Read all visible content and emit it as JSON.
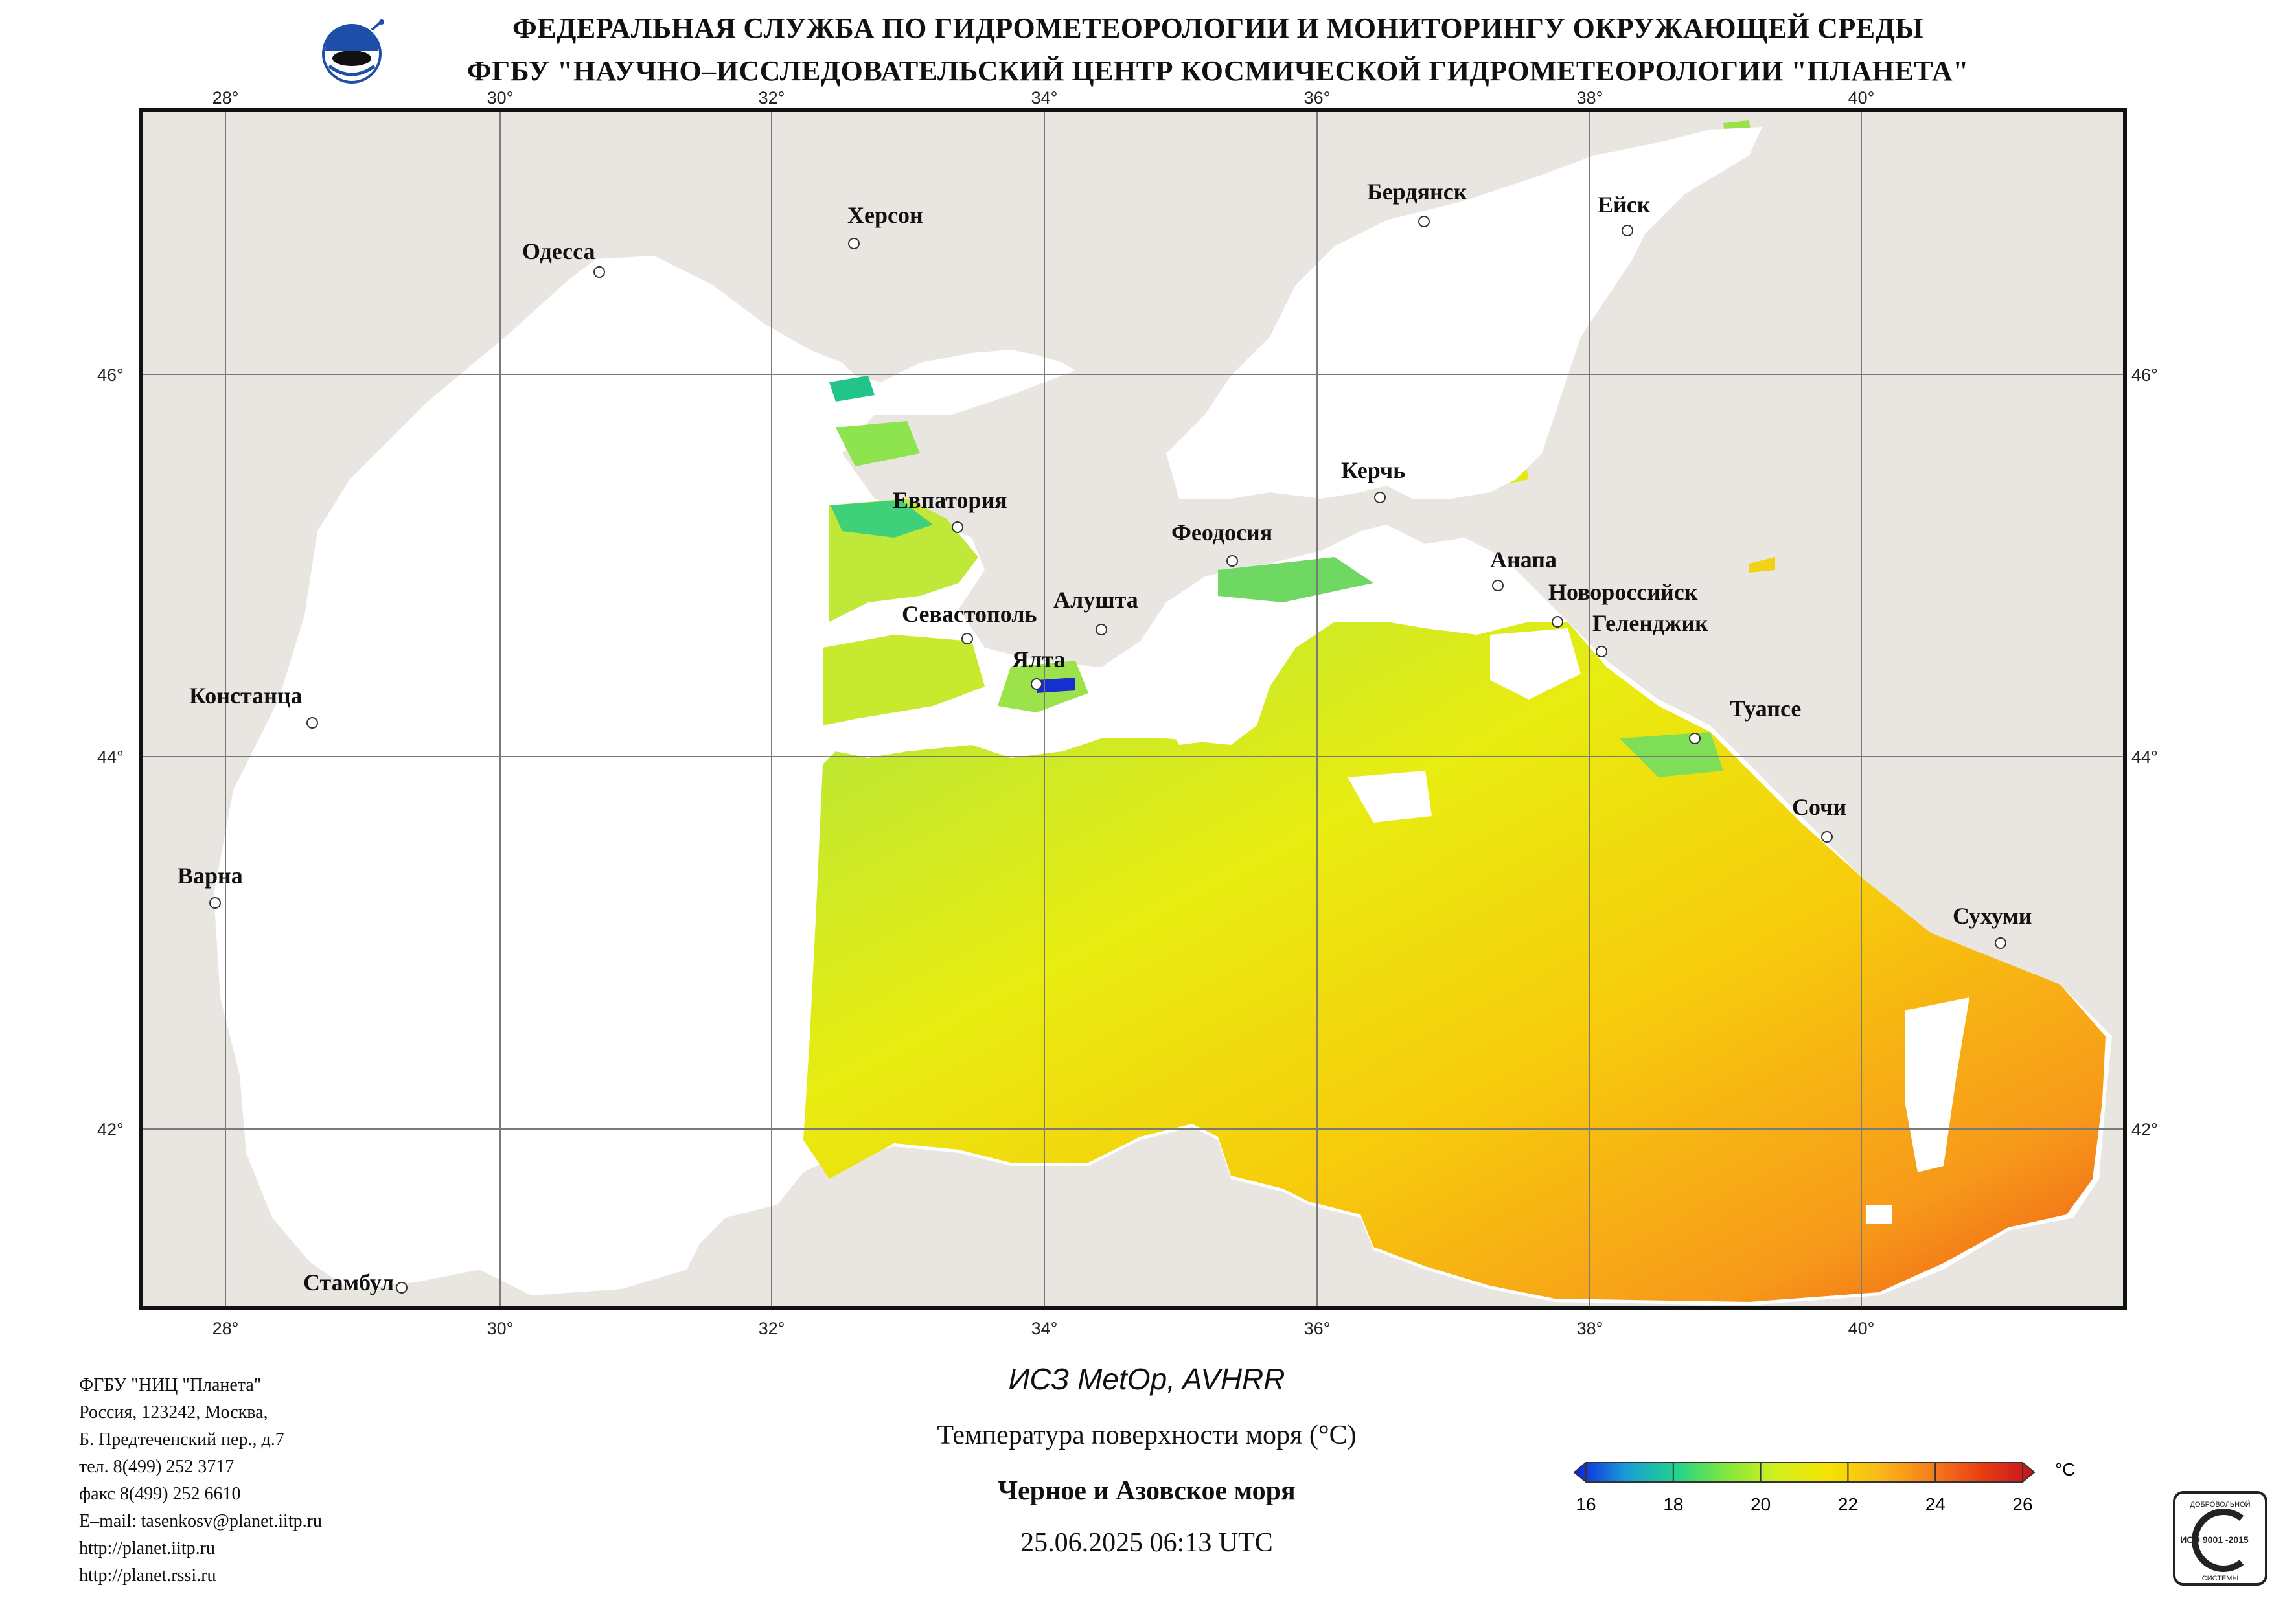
{
  "header": {
    "line1": "ФЕДЕРАЛЬНАЯ СЛУЖБА ПО ГИДРОМЕТЕОРОЛОГИИ И МОНИТОРИНГУ ОКРУЖАЮЩЕЙ СРЕДЫ",
    "line2": "ФГБУ \"НАУЧНО–ИССЛЕДОВАТЕЛЬСКИЙ ЦЕНТР КОСМИЧЕСКОЙ ГИДРОМЕТЕОРОЛОГИИ \"ПЛАНЕТА\""
  },
  "map": {
    "lon_ticks": [
      "28°",
      "30°",
      "32°",
      "34°",
      "36°",
      "38°",
      "40°"
    ],
    "lat_ticks": [
      "46°",
      "44°",
      "42°"
    ],
    "cities": [
      {
        "name": "Одесса"
      },
      {
        "name": "Херсон"
      },
      {
        "name": "Бердянск"
      },
      {
        "name": "Ейск"
      },
      {
        "name": "Евпатория"
      },
      {
        "name": "Керчь"
      },
      {
        "name": "Феодосия"
      },
      {
        "name": "Анапа"
      },
      {
        "name": "Алушта"
      },
      {
        "name": "Севастополь"
      },
      {
        "name": "Новороссийск"
      },
      {
        "name": "Геленджик"
      },
      {
        "name": "Ялта"
      },
      {
        "name": "Констанца"
      },
      {
        "name": "Туапсе"
      },
      {
        "name": "Сочи"
      },
      {
        "name": "Варна"
      },
      {
        "name": "Сухуми"
      },
      {
        "name": "Стамбул"
      }
    ],
    "colors": {
      "land": "#e9e6e2",
      "sea_nodata": "#ffffff",
      "grid": "#7a7a7a"
    }
  },
  "footer": {
    "address": [
      "ФГБУ \"НИЦ \"Планета\"",
      "Россия, 123242, Москва,",
      "Б. Предтеченский пер., д.7",
      "тел. 8(499) 252 3717",
      "факс 8(499) 252 6610",
      "E–mail: tasenkosv@planet.iitp.ru",
      "http://planet.iitp.ru",
      "http://planet.rssi.ru"
    ],
    "satellite": "ИСЗ MetOp, AVHRR",
    "parameter": "Температура поверхности моря (°C)",
    "region": "Черное и Азовское моря",
    "datetime": "25.06.2025 06:13 UTC"
  },
  "colorbar": {
    "unit": "°C",
    "min": 16,
    "max": 26,
    "ticks": [
      "16",
      "18",
      "20",
      "22",
      "24",
      "26"
    ],
    "stops": [
      "#0a1ee0",
      "#1a9bd8",
      "#22d38a",
      "#84e83a",
      "#d6ef1e",
      "#f6e200",
      "#f8b81a",
      "#f57d1a",
      "#ea3c14",
      "#c4121e"
    ]
  },
  "logos": {
    "iso_mark": "ИСО 9001 -2015",
    "iso_top": "ДОБРОВОЛЬНОЙ",
    "iso_bottom": "СИСТЕМЫ"
  }
}
